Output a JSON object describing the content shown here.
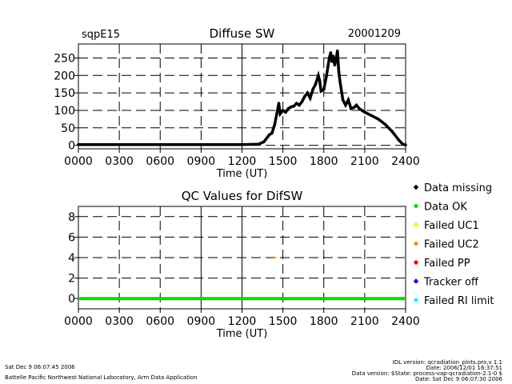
{
  "chart_data": [
    {
      "type": "scatter",
      "title": "Diffuse SW",
      "site_label": "sqpE15",
      "date_label": "20001209",
      "xlabel": "Time (UT)",
      "ylabel": "",
      "xlim": [
        0,
        2400
      ],
      "ylim": [
        -10,
        290
      ],
      "x_ticks": [
        0,
        300,
        600,
        900,
        1200,
        1500,
        1800,
        2100,
        2400
      ],
      "x_tick_labels": [
        "0000",
        "0300",
        "0600",
        "0900",
        "1200",
        "1500",
        "1800",
        "2100",
        "2400"
      ],
      "y_ticks": [
        0,
        50,
        100,
        150,
        200,
        250
      ],
      "y_tick_labels": [
        "0",
        "50",
        "100",
        "150",
        "200",
        "250"
      ],
      "grid": true,
      "series": [
        {
          "color": "#000000",
          "points": [
            [
              0,
              2
            ],
            [
              200,
              2
            ],
            [
              400,
              2
            ],
            [
              600,
              2
            ],
            [
              800,
              2
            ],
            [
              1000,
              2
            ],
            [
              1200,
              2
            ],
            [
              1320,
              3
            ],
            [
              1360,
              10
            ],
            [
              1400,
              30
            ],
            [
              1420,
              35
            ],
            [
              1440,
              60
            ],
            [
              1460,
              100
            ],
            [
              1470,
              120
            ],
            [
              1480,
              90
            ],
            [
              1500,
              100
            ],
            [
              1520,
              95
            ],
            [
              1540,
              105
            ],
            [
              1560,
              110
            ],
            [
              1580,
              112
            ],
            [
              1600,
              120
            ],
            [
              1620,
              115
            ],
            [
              1640,
              125
            ],
            [
              1660,
              140
            ],
            [
              1680,
              150
            ],
            [
              1700,
              135
            ],
            [
              1720,
              160
            ],
            [
              1740,
              175
            ],
            [
              1760,
              200
            ],
            [
              1770,
              185
            ],
            [
              1780,
              155
            ],
            [
              1800,
              160
            ],
            [
              1820,
              200
            ],
            [
              1840,
              250
            ],
            [
              1850,
              265
            ],
            [
              1860,
              240
            ],
            [
              1870,
              255
            ],
            [
              1880,
              230
            ],
            [
              1890,
              245
            ],
            [
              1900,
              270
            ],
            [
              1910,
              210
            ],
            [
              1920,
              180
            ],
            [
              1940,
              130
            ],
            [
              1960,
              115
            ],
            [
              1980,
              130
            ],
            [
              2000,
              105
            ],
            [
              2020,
              108
            ],
            [
              2040,
              115
            ],
            [
              2060,
              105
            ],
            [
              2080,
              100
            ],
            [
              2100,
              95
            ],
            [
              2150,
              85
            ],
            [
              2200,
              75
            ],
            [
              2250,
              60
            ],
            [
              2300,
              40
            ],
            [
              2350,
              15
            ],
            [
              2380,
              3
            ],
            [
              2400,
              1
            ]
          ]
        }
      ]
    },
    {
      "type": "scatter",
      "title": "QC Values for DifSW",
      "xlabel": "Time (UT)",
      "ylabel": "",
      "xlim": [
        0,
        2400
      ],
      "ylim": [
        -1,
        9
      ],
      "x_ticks": [
        0,
        300,
        600,
        900,
        1200,
        1500,
        1800,
        2100,
        2400
      ],
      "x_tick_labels": [
        "0000",
        "0300",
        "0600",
        "0900",
        "1200",
        "1500",
        "1800",
        "2100",
        "2400"
      ],
      "y_ticks": [
        0,
        2,
        4,
        6,
        8
      ],
      "y_tick_labels": [
        "0",
        "2",
        "4",
        "6",
        "8"
      ],
      "grid": true,
      "legend_position": "right",
      "legend": [
        {
          "name": "Data missing",
          "color": "#000000"
        },
        {
          "name": "Data OK",
          "color": "#00dd00"
        },
        {
          "name": "Failed UC1",
          "color": "#ffff00"
        },
        {
          "name": "Failed UC2",
          "color": "#ff8c00"
        },
        {
          "name": "Failed PP",
          "color": "#ff0000"
        },
        {
          "name": "Tracker off",
          "color": "#0000ff"
        },
        {
          "name": "Failed RI limit",
          "color": "#00ffff"
        }
      ],
      "series": [
        {
          "color": "#00dd00",
          "x_range": [
            0,
            2400
          ],
          "y": 0
        },
        {
          "color": "#ff8c00",
          "points": [
            [
              1440,
              4
            ]
          ]
        }
      ]
    }
  ],
  "footer": {
    "left_line1": "Sat Dec  9 06:07:45 2006",
    "left_line2": "Battelle Pacific Northwest National Laboratory, Arm Data Application",
    "right_line1": "IDL version: qcradiation_plots.pro,v 1.1",
    "right_line2": "Date: 2006/12/01 16:37:51",
    "right_line3": "Data version: $State: process-vap-qcradiation-2.1-0 $",
    "right_line4": "Date: Sat Dec  9 06:07:30 2006"
  }
}
